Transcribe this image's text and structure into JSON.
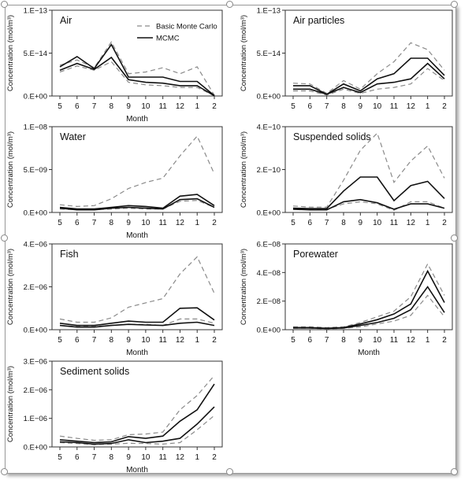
{
  "legend": {
    "basic": "Basic Monte Carlo",
    "mcmc": "MCMC"
  },
  "chart_data": [
    {
      "type": "line",
      "title": "Air",
      "xlabel": "Month",
      "ylabel": "Concentration (mol/m³)",
      "categories": [
        "5",
        "6",
        "7",
        "8",
        "9",
        "10",
        "11",
        "12",
        "1",
        "2"
      ],
      "yticks": [
        "0.E+00",
        "5.E−14",
        "1.E−13"
      ],
      "ylim": [
        0,
        1e-13
      ],
      "legend": true,
      "series": [
        {
          "name": "Basic Monte Carlo",
          "style": "dashed",
          "values": [
            3.6e-14,
            4.2e-14,
            3.3e-14,
            6.3e-14,
            2.6e-14,
            2.8e-14,
            3.3e-14,
            2.6e-14,
            3.4e-14,
            1e-15
          ]
        },
        {
          "style": "dashed",
          "values": [
            2.8e-14,
            3.5e-14,
            3e-14,
            4e-14,
            1.6e-14,
            1.3e-14,
            1.2e-14,
            1e-14,
            1e-14,
            3e-16
          ]
        },
        {
          "name": "MCMC",
          "style": "solid",
          "values": [
            3.4e-14,
            4.6e-14,
            3.2e-14,
            6e-14,
            2.2e-14,
            2.2e-14,
            2.2e-14,
            1.7e-14,
            1.7e-14,
            5e-16
          ]
        },
        {
          "style": "solid",
          "values": [
            3e-14,
            3.8e-14,
            3.1e-14,
            4.5e-14,
            1.9e-14,
            1.6e-14,
            1.5e-14,
            1.2e-14,
            1.2e-14,
            3e-16
          ]
        }
      ]
    },
    {
      "type": "line",
      "title": "Air particles",
      "xlabel": "",
      "ylabel": "Concentration (mol/m³)",
      "categories": [
        "5",
        "6",
        "7",
        "8",
        "9",
        "10",
        "11",
        "12",
        "1",
        "2"
      ],
      "yticks": [
        "0.E+00",
        "5.E−14",
        "1.E−13"
      ],
      "ylim": [
        0,
        1e-13
      ],
      "series": [
        {
          "style": "dashed",
          "values": [
            1.5e-14,
            1.4e-14,
            3e-15,
            1.8e-14,
            8e-15,
            2.6e-14,
            4e-14,
            6.2e-14,
            5.4e-14,
            3e-14
          ]
        },
        {
          "style": "dashed",
          "values": [
            6e-15,
            6e-15,
            1e-15,
            8e-15,
            3e-15,
            8e-15,
            1e-14,
            1.4e-14,
            3.2e-14,
            1.8e-14
          ]
        },
        {
          "style": "solid",
          "values": [
            1.2e-14,
            1.2e-14,
            2e-15,
            1.4e-14,
            6e-15,
            2e-14,
            2.6e-14,
            4.4e-14,
            4.4e-14,
            2.4e-14
          ]
        },
        {
          "style": "solid",
          "values": [
            8e-15,
            8e-15,
            2e-15,
            1e-14,
            4e-15,
            1.4e-14,
            1.6e-14,
            2e-14,
            3.8e-14,
            2e-14
          ]
        }
      ]
    },
    {
      "type": "line",
      "title": "Water",
      "xlabel": "Month",
      "ylabel": "Concentration (mol/m³)",
      "categories": [
        "5",
        "6",
        "7",
        "8",
        "9",
        "10",
        "11",
        "12",
        "1",
        "2"
      ],
      "yticks": [
        "0.E+00",
        "5.E−09",
        "1.E−08"
      ],
      "ylim": [
        0,
        1e-08
      ],
      "series": [
        {
          "style": "dashed",
          "values": [
            9e-10,
            7e-10,
            8e-10,
            1.6e-09,
            2.8e-09,
            3.5e-09,
            4e-09,
            6.6e-09,
            8.9e-09,
            4.5e-09
          ]
        },
        {
          "style": "dashed",
          "values": [
            4e-10,
            3e-10,
            3e-10,
            4e-10,
            5e-10,
            4e-10,
            4e-10,
            1.3e-09,
            1.4e-09,
            6e-10
          ]
        },
        {
          "style": "solid",
          "values": [
            6e-10,
            4e-10,
            4e-10,
            6e-10,
            8e-10,
            7e-10,
            5e-10,
            1.9e-09,
            2.1e-09,
            8e-10
          ]
        },
        {
          "style": "solid",
          "values": [
            5e-10,
            3e-10,
            3e-10,
            5e-10,
            6e-10,
            5e-10,
            4e-10,
            1.5e-09,
            1.6e-09,
            6e-10
          ]
        }
      ]
    },
    {
      "type": "line",
      "title": "Suspended solids",
      "xlabel": "",
      "ylabel": "Concentration (mol/m³)",
      "categories": [
        "5",
        "6",
        "7",
        "8",
        "9",
        "10",
        "11",
        "12",
        "1",
        "2"
      ],
      "yticks": [
        "0.E+00",
        "2.E−10",
        "4.E−10"
      ],
      "ylim": [
        0,
        4e-10
      ],
      "series": [
        {
          "style": "dashed",
          "values": [
            3e-11,
            2.5e-11,
            2.5e-11,
            1.5e-10,
            2.9e-10,
            3.7e-10,
            1.4e-10,
            2.4e-10,
            3.1e-10,
            1.6e-10
          ]
        },
        {
          "style": "dashed",
          "values": [
            2e-11,
            1.5e-11,
            1.5e-11,
            4e-11,
            5e-11,
            4e-11,
            1e-11,
            5e-11,
            5e-11,
            2e-11
          ]
        },
        {
          "style": "solid",
          "values": [
            2e-11,
            1.8e-11,
            1.8e-11,
            1e-10,
            1.65e-10,
            1.65e-10,
            5.5e-11,
            1.25e-10,
            1.45e-10,
            6.5e-11
          ]
        },
        {
          "style": "solid",
          "values": [
            1.5e-11,
            1.2e-11,
            1.2e-11,
            5e-11,
            6e-11,
            4.5e-11,
            1.5e-11,
            4e-11,
            4e-11,
            2e-11
          ]
        }
      ]
    },
    {
      "type": "line",
      "title": "Fish",
      "xlabel": "Month",
      "ylabel": "Concentration (mol/m³)",
      "categories": [
        "5",
        "6",
        "7",
        "8",
        "9",
        "10",
        "11",
        "12",
        "1",
        "2"
      ],
      "yticks": [
        "0.E+00",
        "2.E−06",
        "4.E−06"
      ],
      "ylim": [
        0,
        4e-06
      ],
      "series": [
        {
          "style": "dashed",
          "values": [
            5e-07,
            3.5e-07,
            3.5e-07,
            5.5e-07,
            1.05e-06,
            1.25e-06,
            1.45e-06,
            2.6e-06,
            3.4e-06,
            1.7e-06
          ]
        },
        {
          "style": "dashed",
          "values": [
            2e-07,
            1.5e-07,
            1.5e-07,
            2e-07,
            2.5e-07,
            2.5e-07,
            2e-07,
            5e-07,
            5e-07,
            3e-07
          ]
        },
        {
          "style": "solid",
          "values": [
            3e-07,
            2e-07,
            2e-07,
            3e-07,
            4e-07,
            3.5e-07,
            3.5e-07,
            1e-06,
            1.02e-06,
            4.5e-07
          ]
        },
        {
          "style": "solid",
          "values": [
            2e-07,
            1.2e-07,
            1.2e-07,
            2e-07,
            2.5e-07,
            2.2e-07,
            2e-07,
            3e-07,
            3.5e-07,
            2e-07
          ]
        }
      ]
    },
    {
      "type": "line",
      "title": "Porewater",
      "xlabel": "Month",
      "ylabel": "Concentration (mol/m³)",
      "categories": [
        "5",
        "6",
        "7",
        "8",
        "9",
        "10",
        "11",
        "12",
        "1",
        "2"
      ],
      "yticks": [
        "0.E+00",
        "2.E−08",
        "4.E−08",
        "6.E−08"
      ],
      "ylim": [
        0,
        6e-08
      ],
      "series": [
        {
          "style": "dashed",
          "values": [
            2e-09,
            2e-09,
            1.5e-09,
            2e-09,
            5e-09,
            9e-09,
            1.3e-08,
            2.3e-08,
            4.6e-08,
            2.4e-08
          ]
        },
        {
          "style": "dashed",
          "values": [
            1e-09,
            1e-09,
            5e-10,
            1e-09,
            2e-09,
            4e-09,
            6e-09,
            1e-08,
            2.4e-08,
            9e-09
          ]
        },
        {
          "style": "solid",
          "values": [
            1.5e-09,
            1.5e-09,
            1e-09,
            1.5e-09,
            4e-09,
            7e-09,
            1.1e-08,
            1.8e-08,
            4.1e-08,
            1.9e-08
          ]
        },
        {
          "style": "solid",
          "values": [
            1.2e-09,
            1.2e-09,
            8e-10,
            1.2e-09,
            3e-09,
            5e-09,
            8e-09,
            1.4e-08,
            3e-08,
            1.2e-08
          ]
        }
      ]
    },
    {
      "type": "line",
      "title": "Sediment solids",
      "xlabel": "Month",
      "ylabel": "Concentration (mol/m³)",
      "categories": [
        "5",
        "6",
        "7",
        "8",
        "9",
        "10",
        "11",
        "12",
        "1",
        "2"
      ],
      "yticks": [
        "0.E+00",
        "1.E−06",
        "2.E−06",
        "3.E−06"
      ],
      "ylim": [
        0,
        3e-06
      ],
      "series": [
        {
          "style": "dashed",
          "values": [
            3.8e-07,
            3e-07,
            2.3e-07,
            2.5e-07,
            4.3e-07,
            4.5e-07,
            5.2e-07,
            1.3e-06,
            1.8e-06,
            2.5e-06
          ]
        },
        {
          "style": "dashed",
          "values": [
            1.5e-07,
            1.2e-07,
            8e-08,
            1e-07,
            1.3e-07,
            1.2e-07,
            1e-07,
            1.5e-07,
            6e-07,
            1.1e-06
          ]
        },
        {
          "style": "solid",
          "values": [
            2.5e-07,
            2e-07,
            1.5e-07,
            1.8e-07,
            3.6e-07,
            3e-07,
            3.8e-07,
            9e-07,
            1.3e-06,
            2.2e-06
          ]
        },
        {
          "style": "solid",
          "values": [
            1.8e-07,
            1.5e-07,
            1e-07,
            1.2e-07,
            2.5e-07,
            1.5e-07,
            2e-07,
            3e-07,
            8e-07,
            1.4e-06
          ]
        }
      ]
    }
  ]
}
